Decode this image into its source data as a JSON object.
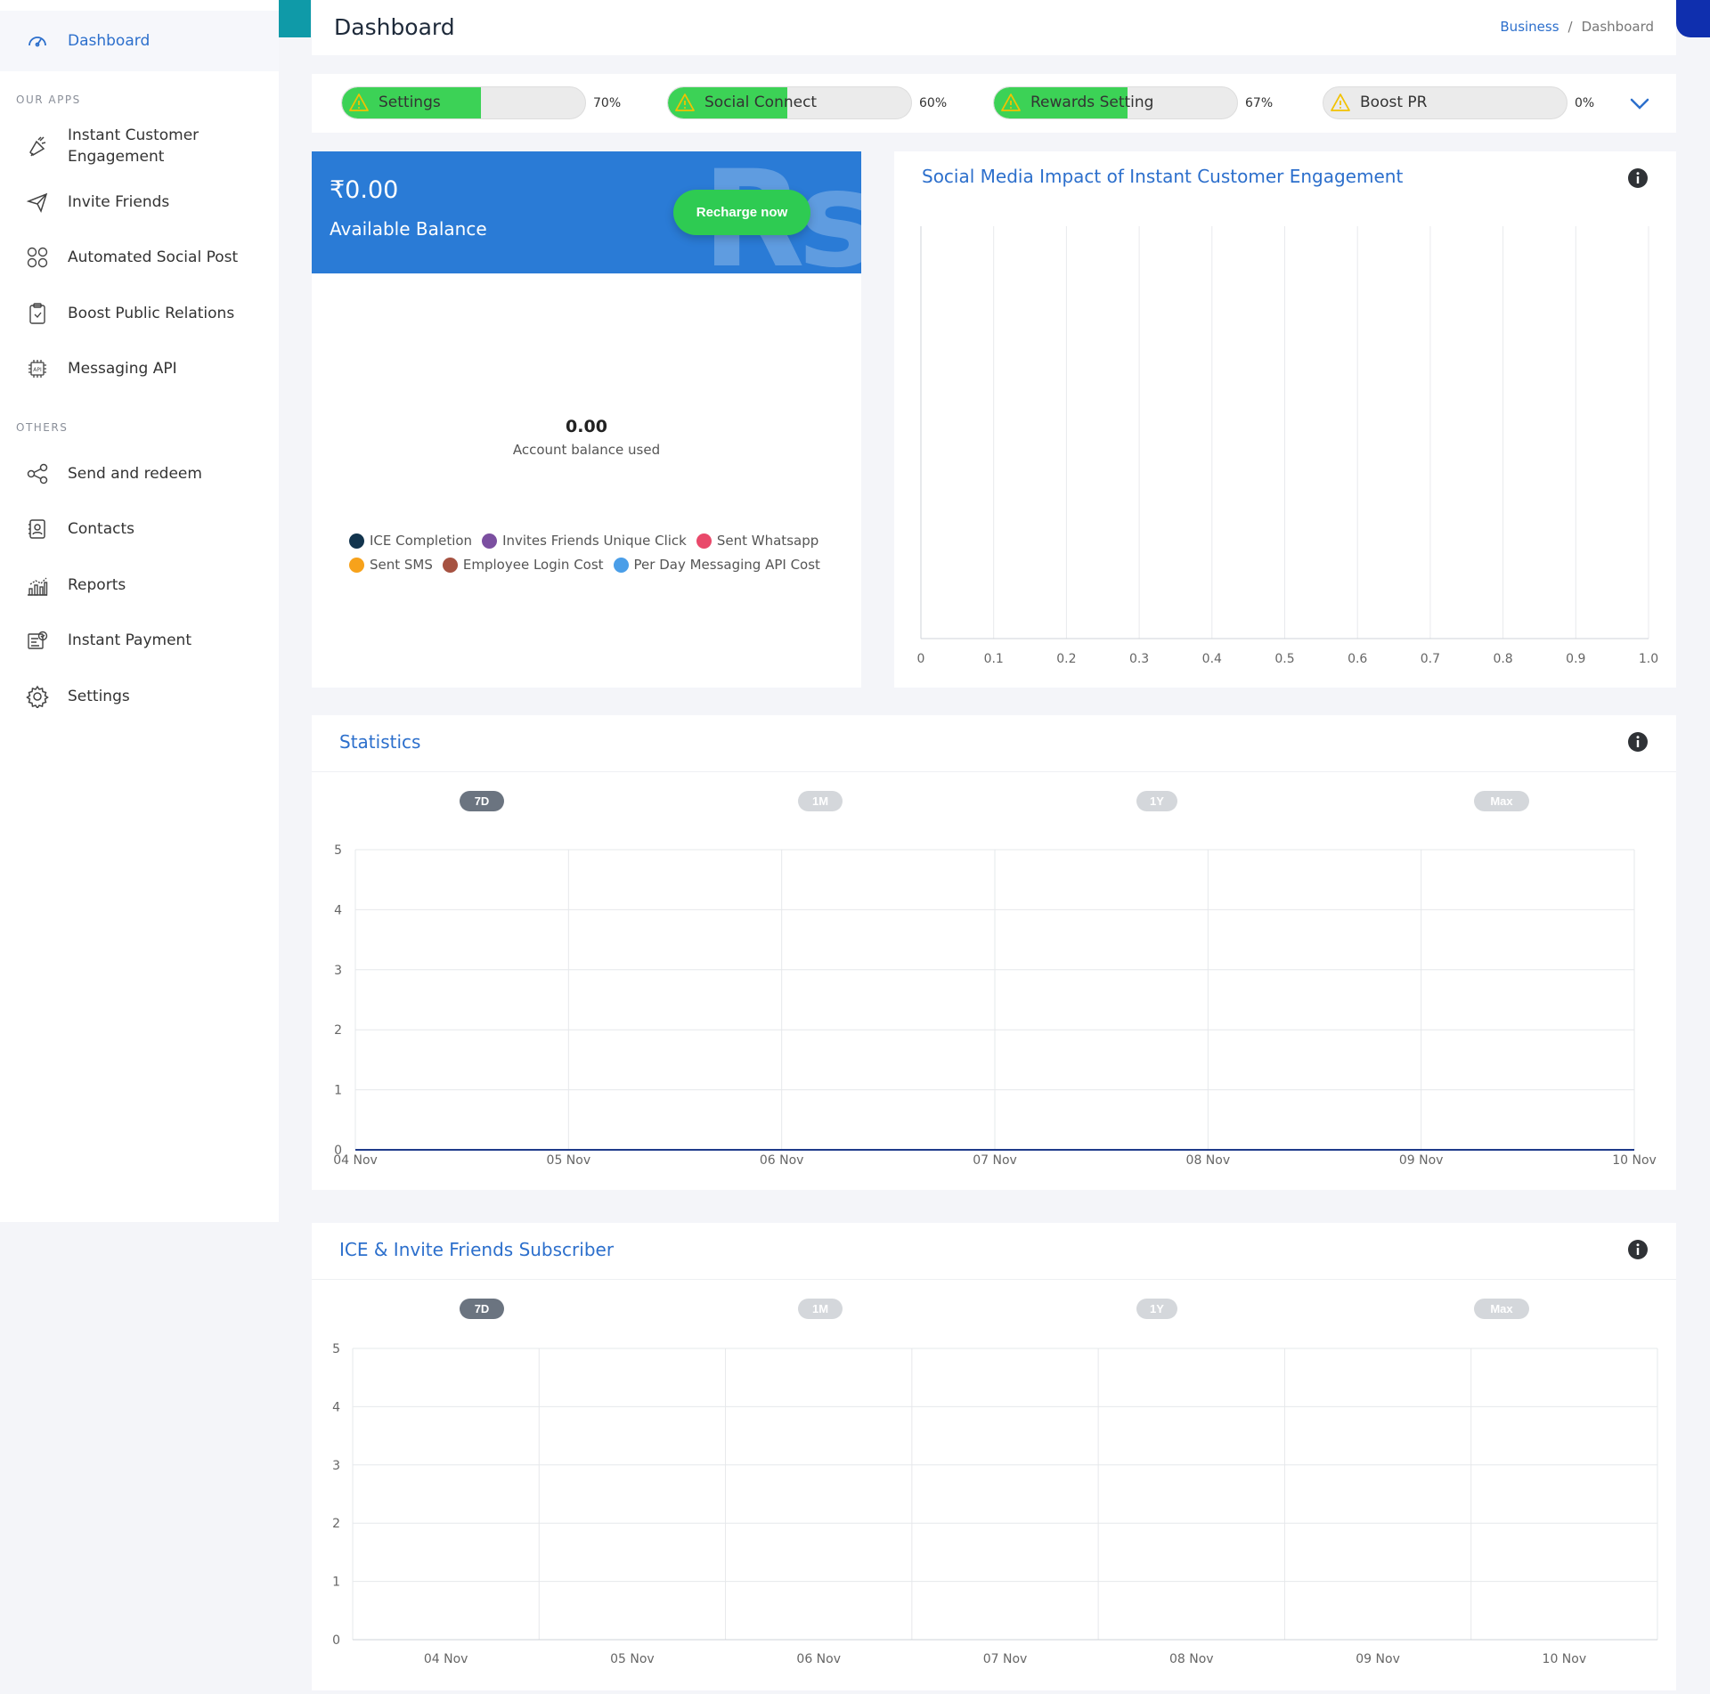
{
  "sidebar": {
    "active": {
      "label": "Dashboard",
      "icon": "speedometer-icon"
    },
    "section_apps": "OUR APPS",
    "apps": [
      {
        "label1": "Instant Customer",
        "label2": "Engagement",
        "icon": "megaphone-icon"
      },
      {
        "label": "Invite Friends",
        "icon": "paper-plane-icon"
      },
      {
        "label": "Automated Social Post",
        "icon": "social-grid-icon"
      },
      {
        "label": "Boost Public Relations",
        "icon": "clipboard-icon"
      },
      {
        "label": "Messaging API",
        "icon": "api-chip-icon"
      }
    ],
    "section_others": "OTHERS",
    "others": [
      {
        "label": "Send and redeem",
        "icon": "share-icon"
      },
      {
        "label": "Contacts",
        "icon": "contact-book-icon"
      },
      {
        "label": "Reports",
        "icon": "bar-chart-icon"
      },
      {
        "label": "Instant Payment",
        "icon": "payment-icon"
      },
      {
        "label": "Settings",
        "icon": "gear-icon"
      }
    ]
  },
  "header": {
    "title": "Dashboard",
    "breadcrumb": {
      "link": "Business",
      "separator": "/",
      "current": "Dashboard"
    }
  },
  "progress": [
    {
      "label": "Settings",
      "percent_text": "70%",
      "fill": 0.57,
      "icon": "warning-icon"
    },
    {
      "label": "Social Connect",
      "percent_text": "60%",
      "fill": 0.49,
      "icon": "warning-icon"
    },
    {
      "label": "Rewards Setting",
      "percent_text": "67%",
      "fill": 0.55,
      "icon": "warning-icon"
    },
    {
      "label": "Boost PR",
      "percent_text": "0%",
      "fill": 0,
      "icon": "warning-icon"
    }
  ],
  "balance": {
    "amount": "₹0.00",
    "label": "Available Balance",
    "recharge": "Recharge now",
    "donut_value": "0.00",
    "donut_label": "Account balance used",
    "legend": [
      {
        "label": "ICE Completion",
        "color": "#12344d"
      },
      {
        "label": "Invites Friends Unique Click",
        "color": "#7b4fa0"
      },
      {
        "label": "Sent Whatsapp",
        "color": "#e9496a"
      },
      {
        "label": "Sent SMS",
        "color": "#f7a21b"
      },
      {
        "label": "Employee Login Cost",
        "color": "#a65241"
      },
      {
        "label": "Per Day Messaging API Cost",
        "color": "#4a9ee8"
      }
    ]
  },
  "social": {
    "title": "Social Media Impact of Instant Customer Engagement"
  },
  "statistics": {
    "title": "Statistics",
    "ranges": [
      "7D",
      "1M",
      "1Y",
      "Max"
    ],
    "active_range": "7D"
  },
  "ice": {
    "title": "ICE & Invite Friends Subscriber",
    "ranges": [
      "7D",
      "1M",
      "1Y",
      "Max"
    ],
    "active_range": "7D"
  },
  "colors": {
    "accent": "#2c6fcc",
    "balance_bg": "#2a7bd6",
    "success": "#3cd256",
    "teal": "#0f9aa8",
    "navy": "#0f2fae"
  },
  "chart_data": [
    {
      "type": "bar",
      "orientation": "horizontal",
      "x": [
        0,
        0.1,
        0.2,
        0.3,
        0.4,
        0.5,
        0.6,
        0.7,
        0.8,
        0.9,
        1.0
      ],
      "xlim": [
        0,
        1.0
      ],
      "categories": [],
      "values": [],
      "grid": true
    },
    {
      "type": "line",
      "categories": [
        "04 Nov",
        "05 Nov",
        "06 Nov",
        "07 Nov",
        "08 Nov",
        "09 Nov",
        "10 Nov"
      ],
      "series": [
        {
          "values": [
            0,
            0,
            0,
            0,
            0,
            0,
            0
          ],
          "color": "#1f3b8a"
        }
      ],
      "yticks": [
        0,
        1,
        2,
        3,
        4,
        5
      ],
      "ylim": [
        0,
        5
      ],
      "grid": true
    },
    {
      "type": "bar",
      "categories": [
        "04 Nov",
        "05 Nov",
        "06 Nov",
        "07 Nov",
        "08 Nov",
        "09 Nov",
        "10 Nov"
      ],
      "series": [],
      "yticks": [
        0,
        1,
        2,
        3,
        4,
        5
      ],
      "ylim": [
        0,
        5
      ],
      "grid": true
    }
  ]
}
